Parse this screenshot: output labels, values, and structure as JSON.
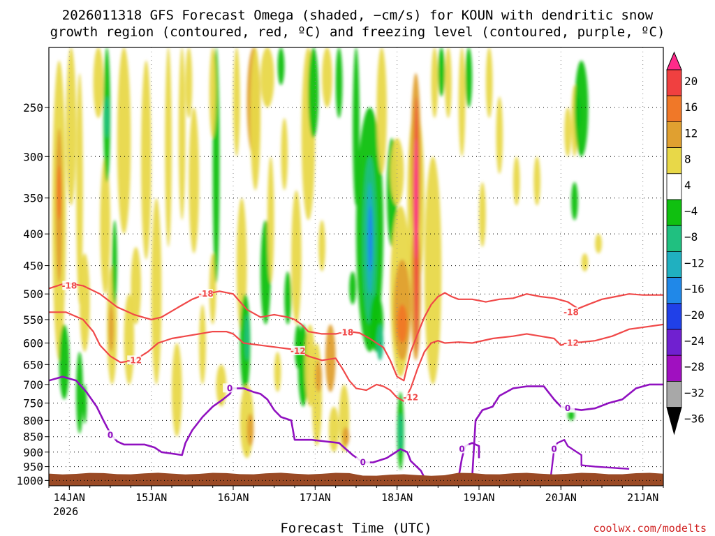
{
  "chart_data": {
    "type": "time-height cross-section",
    "title_line1": "2026011318 GFS Forecast Omega (shaded, −cm/s) for KOUN with dendritic snow",
    "title_line2": "growth region (contoured, red, ºC) and freezing level (contoured, purple, ºC)",
    "xlabel": "Forecast Time (UTC)",
    "ylabel": "",
    "credit": "coolwx.com/modelts",
    "year_label": "2026",
    "x_ticks": [
      {
        "label": "14JAN",
        "hour": 6
      },
      {
        "label": "15JAN",
        "hour": 30
      },
      {
        "label": "16JAN",
        "hour": 54
      },
      {
        "label": "17JAN",
        "hour": 78
      },
      {
        "label": "18JAN",
        "hour": 102
      },
      {
        "label": "19JAN",
        "hour": 126
      },
      {
        "label": "20JAN",
        "hour": 150
      },
      {
        "label": "21JAN",
        "hour": 174
      }
    ],
    "xlim_hours": [
      0,
      180
    ],
    "y_ticks": [
      "250",
      "300",
      "350",
      "400",
      "450",
      "500",
      "550",
      "600",
      "650",
      "700",
      "750",
      "800",
      "850",
      "900",
      "950",
      "1000"
    ],
    "y_tick_values": [
      250,
      300,
      350,
      400,
      450,
      500,
      550,
      600,
      650,
      700,
      750,
      800,
      850,
      900,
      950,
      1000
    ],
    "ylim_hpa": [
      200,
      1020
    ],
    "surface_pressure_hpa": 975,
    "colorbar": {
      "labels": [
        "20",
        "16",
        "12",
        "8",
        "4",
        "−4",
        "−8",
        "−12",
        "−16",
        "−20",
        "−24",
        "−28",
        "−32",
        "−36"
      ],
      "colors": [
        "#ff2a8a",
        "#f04040",
        "#f07828",
        "#e0a030",
        "#e8d848",
        "#ffffff",
        "#10c010",
        "#20c080",
        "#20b0c0",
        "#2088e8",
        "#2040e8",
        "#7020d0",
        "#a010c0",
        "#a8a8a8",
        "#000000"
      ]
    },
    "shading_colors": {
      "yellow": "#e8d848",
      "orange": "#e0a030",
      "darkorange": "#f07828",
      "red": "#f04040",
      "magenta": "#ff2a8a",
      "green": "#10c010",
      "teal": "#20c080",
      "cyan": "#20b0c0",
      "blue": "#2088e8"
    },
    "dgz_color": "#f04848",
    "freezing_color": "#9010c0",
    "ground_color": "#9a4a25",
    "dgz_upper_minus18": [
      [
        0,
        490
      ],
      [
        5,
        480
      ],
      [
        10,
        485
      ],
      [
        15,
        500
      ],
      [
        20,
        525
      ],
      [
        25,
        540
      ],
      [
        30,
        550
      ],
      [
        33,
        545
      ],
      [
        38,
        525
      ],
      [
        42,
        510
      ],
      [
        46,
        500
      ],
      [
        50,
        495
      ],
      [
        54,
        500
      ],
      [
        58,
        530
      ],
      [
        62,
        545
      ],
      [
        66,
        540
      ],
      [
        70,
        545
      ],
      [
        72,
        550
      ],
      [
        74,
        560
      ],
      [
        76,
        575
      ],
      [
        80,
        580
      ],
      [
        84,
        580
      ],
      [
        88,
        575
      ],
      [
        91,
        578
      ],
      [
        94,
        590
      ],
      [
        96,
        600
      ],
      [
        98,
        610
      ],
      [
        100,
        640
      ],
      [
        102,
        680
      ],
      [
        104,
        690
      ],
      [
        106,
        620
      ],
      [
        108,
        580
      ],
      [
        110,
        545
      ],
      [
        112,
        520
      ],
      [
        114,
        505
      ],
      [
        116,
        498
      ],
      [
        118,
        505
      ],
      [
        120,
        510
      ],
      [
        124,
        510
      ],
      [
        128,
        515
      ],
      [
        132,
        510
      ],
      [
        136,
        508
      ],
      [
        140,
        500
      ],
      [
        144,
        505
      ],
      [
        148,
        508
      ],
      [
        152,
        515
      ],
      [
        155,
        528
      ],
      [
        158,
        520
      ],
      [
        162,
        510
      ],
      [
        166,
        505
      ],
      [
        170,
        500
      ],
      [
        174,
        502
      ],
      [
        180,
        502
      ]
    ],
    "dgz_lower_minus12": [
      [
        0,
        535
      ],
      [
        5,
        535
      ],
      [
        10,
        550
      ],
      [
        13,
        575
      ],
      [
        15,
        605
      ],
      [
        18,
        630
      ],
      [
        21,
        645
      ],
      [
        25,
        640
      ],
      [
        29,
        620
      ],
      [
        32,
        600
      ],
      [
        36,
        590
      ],
      [
        40,
        585
      ],
      [
        44,
        580
      ],
      [
        48,
        575
      ],
      [
        52,
        575
      ],
      [
        54,
        580
      ],
      [
        57,
        600
      ],
      [
        62,
        605
      ],
      [
        67,
        610
      ],
      [
        72,
        615
      ],
      [
        76,
        630
      ],
      [
        80,
        640
      ],
      [
        84,
        635
      ],
      [
        86,
        660
      ],
      [
        88,
        690
      ],
      [
        90,
        710
      ],
      [
        93,
        715
      ],
      [
        96,
        700
      ],
      [
        98,
        705
      ],
      [
        100,
        715
      ],
      [
        102,
        735
      ],
      [
        104,
        745
      ],
      [
        106,
        710
      ],
      [
        108,
        660
      ],
      [
        110,
        620
      ],
      [
        112,
        600
      ],
      [
        114,
        595
      ],
      [
        116,
        600
      ],
      [
        120,
        598
      ],
      [
        124,
        600
      ],
      [
        130,
        590
      ],
      [
        136,
        585
      ],
      [
        140,
        580
      ],
      [
        144,
        585
      ],
      [
        148,
        590
      ],
      [
        150,
        605
      ],
      [
        152,
        600
      ],
      [
        156,
        598
      ],
      [
        160,
        595
      ],
      [
        165,
        585
      ],
      [
        170,
        570
      ],
      [
        175,
        565
      ],
      [
        180,
        560
      ]
    ],
    "freezing_level_0": [
      [
        0,
        690
      ],
      [
        4,
        680
      ],
      [
        8,
        690
      ],
      [
        11,
        720
      ],
      [
        14,
        760
      ],
      [
        16,
        800
      ],
      [
        18,
        840
      ],
      [
        20,
        865
      ],
      [
        22,
        875
      ],
      [
        28,
        875
      ],
      [
        31,
        885
      ],
      [
        33,
        900
      ],
      [
        36,
        905
      ],
      [
        39,
        910
      ],
      [
        40,
        870
      ],
      [
        42,
        830
      ],
      [
        45,
        790
      ],
      [
        48,
        760
      ],
      [
        51,
        740
      ],
      [
        53,
        725
      ],
      [
        54,
        710
      ],
      [
        57,
        710
      ],
      [
        60,
        720
      ],
      [
        62,
        725
      ],
      [
        64,
        740
      ],
      [
        66,
        770
      ],
      [
        68,
        790
      ],
      [
        71,
        800
      ],
      [
        72,
        860
      ],
      [
        77,
        860
      ],
      [
        81,
        865
      ],
      [
        85,
        870
      ],
      [
        87,
        890
      ],
      [
        89,
        910
      ],
      [
        92,
        935
      ],
      [
        95,
        935
      ],
      [
        99,
        920
      ],
      [
        101,
        905
      ],
      [
        103,
        890
      ],
      [
        105,
        900
      ],
      [
        106,
        930
      ],
      [
        109,
        965
      ],
      [
        110,
        990
      ]
    ]
  }
}
